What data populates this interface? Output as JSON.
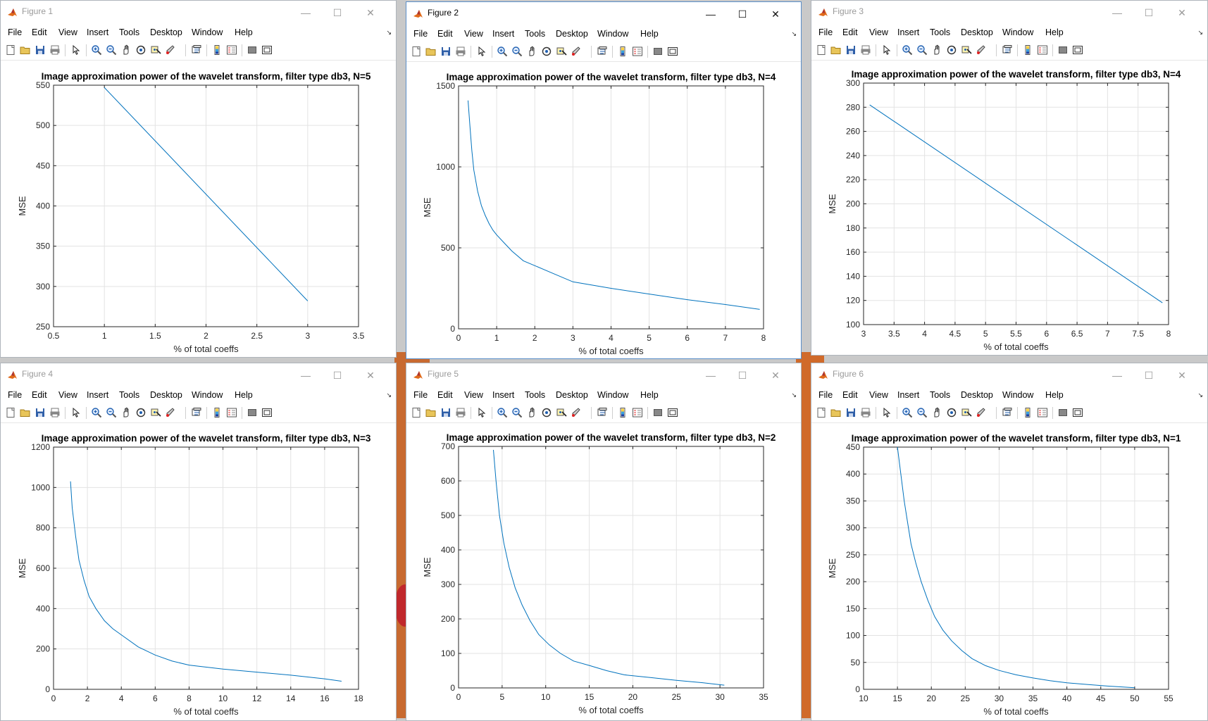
{
  "menu": [
    "File",
    "Edit",
    "View",
    "Insert",
    "Tools",
    "Desktop",
    "Window",
    "Help"
  ],
  "windows": [
    {
      "title": "Figure 1",
      "active": false,
      "chart_data": {
        "type": "line",
        "title": "Image approximation power of the wavelet transform, filter type db3, N=5",
        "xlabel": "% of total coeffs",
        "ylabel": "MSE",
        "xlim": [
          0.5,
          3.5
        ],
        "ylim": [
          250,
          550
        ],
        "xticks": [
          0.5,
          1,
          1.5,
          2,
          2.5,
          3,
          3.5
        ],
        "yticks": [
          250,
          300,
          350,
          400,
          450,
          500,
          550
        ],
        "x": [
          1,
          3
        ],
        "y": [
          547,
          282
        ],
        "grid": true,
        "line_color": "#0072BD"
      }
    },
    {
      "title": "Figure 2",
      "active": true,
      "chart_data": {
        "type": "line",
        "title": "Image approximation power of the wavelet transform, filter type db3, N=4",
        "xlabel": "% of total coeffs",
        "ylabel": "MSE",
        "xlim": [
          0,
          8
        ],
        "ylim": [
          0,
          1500
        ],
        "xticks": [
          0,
          1,
          2,
          3,
          4,
          5,
          6,
          7,
          8
        ],
        "yticks": [
          0,
          500,
          1000,
          1500
        ],
        "x": [
          0.25,
          0.3,
          0.35,
          0.4,
          0.5,
          0.6,
          0.7,
          0.8,
          0.9,
          1.0,
          1.2,
          1.4,
          1.7,
          2.0,
          2.5,
          3.0,
          4.0,
          5.0,
          6.0,
          7.0,
          7.9
        ],
        "y": [
          1410,
          1250,
          1100,
          980,
          850,
          760,
          700,
          650,
          610,
          580,
          530,
          480,
          420,
          390,
          340,
          290,
          250,
          215,
          180,
          150,
          120
        ],
        "grid": true,
        "line_color": "#0072BD"
      }
    },
    {
      "title": "Figure 3",
      "active": false,
      "chart_data": {
        "type": "line",
        "title": "Image approximation power of the wavelet transform, filter type db3, N=4",
        "xlabel": "% of total coeffs",
        "ylabel": "MSE",
        "xlim": [
          3,
          8
        ],
        "ylim": [
          100,
          300
        ],
        "xticks": [
          3,
          3.5,
          4,
          4.5,
          5,
          5.5,
          6,
          6.5,
          7,
          7.5,
          8
        ],
        "yticks": [
          100,
          120,
          140,
          160,
          180,
          200,
          220,
          240,
          260,
          280,
          300
        ],
        "x": [
          3.1,
          7.9
        ],
        "y": [
          282,
          118
        ],
        "grid": true,
        "line_color": "#0072BD"
      }
    },
    {
      "title": "Figure 4",
      "active": false,
      "chart_data": {
        "type": "line",
        "title": "Image approximation power of the wavelet transform, filter type db3, N=3",
        "xlabel": "% of total coeffs",
        "ylabel": "MSE",
        "xlim": [
          0,
          18
        ],
        "ylim": [
          0,
          1200
        ],
        "xticks": [
          0,
          2,
          4,
          6,
          8,
          10,
          12,
          14,
          16,
          18
        ],
        "yticks": [
          0,
          200,
          400,
          600,
          800,
          1000,
          1200
        ],
        "x": [
          1.0,
          1.1,
          1.3,
          1.5,
          1.8,
          2.1,
          2.5,
          3.0,
          3.5,
          4.0,
          5.0,
          6.0,
          7.0,
          8.0,
          10.0,
          12.0,
          14.0,
          16.0,
          17.0
        ],
        "y": [
          1030,
          900,
          760,
          640,
          540,
          460,
          400,
          340,
          300,
          270,
          210,
          170,
          140,
          120,
          100,
          85,
          70,
          52,
          40
        ],
        "grid": true,
        "line_color": "#0072BD"
      }
    },
    {
      "title": "Figure 5",
      "active": false,
      "chart_data": {
        "type": "line",
        "title": "Image approximation power of the wavelet transform, filter type db3, N=2",
        "xlabel": "% of total coeffs",
        "ylabel": "MSE",
        "xlim": [
          0,
          35
        ],
        "ylim": [
          0,
          700
        ],
        "xticks": [
          0,
          5,
          10,
          15,
          20,
          25,
          30,
          35
        ],
        "yticks": [
          0,
          100,
          200,
          300,
          400,
          500,
          600,
          700
        ],
        "x": [
          4.0,
          4.3,
          4.7,
          5.2,
          5.8,
          6.5,
          7.3,
          8.2,
          9.2,
          10.4,
          11.7,
          13.2,
          15.0,
          17.0,
          19.0,
          22.0,
          25.0,
          28.0,
          30.5
        ],
        "y": [
          690,
          600,
          500,
          420,
          350,
          290,
          240,
          195,
          155,
          125,
          100,
          78,
          65,
          50,
          38,
          30,
          22,
          15,
          8
        ],
        "grid": true,
        "line_color": "#0072BD"
      }
    },
    {
      "title": "Figure 6",
      "active": false,
      "chart_data": {
        "type": "line",
        "title": "Image approximation power of the wavelet transform, filter type db3, N=1",
        "xlabel": "% of total coeffs",
        "ylabel": "MSE",
        "xlim": [
          10,
          55
        ],
        "ylim": [
          0,
          450
        ],
        "xticks": [
          10,
          15,
          20,
          25,
          30,
          35,
          40,
          45,
          50,
          55
        ],
        "yticks": [
          0,
          50,
          100,
          150,
          200,
          250,
          300,
          350,
          400,
          450
        ],
        "x": [
          15.0,
          15.5,
          16.0,
          16.5,
          17.0,
          17.7,
          18.5,
          19.5,
          20.5,
          21.7,
          23.0,
          24.5,
          26.0,
          28.0,
          30.0,
          32.5,
          35.0,
          37.5,
          40.0,
          43.0,
          46.0,
          50.0
        ],
        "y": [
          450,
          400,
          350,
          310,
          270,
          235,
          200,
          165,
          135,
          110,
          90,
          72,
          57,
          44,
          35,
          27,
          21,
          16,
          12,
          9,
          6,
          3
        ],
        "grid": true,
        "line_color": "#0072BD"
      }
    }
  ]
}
